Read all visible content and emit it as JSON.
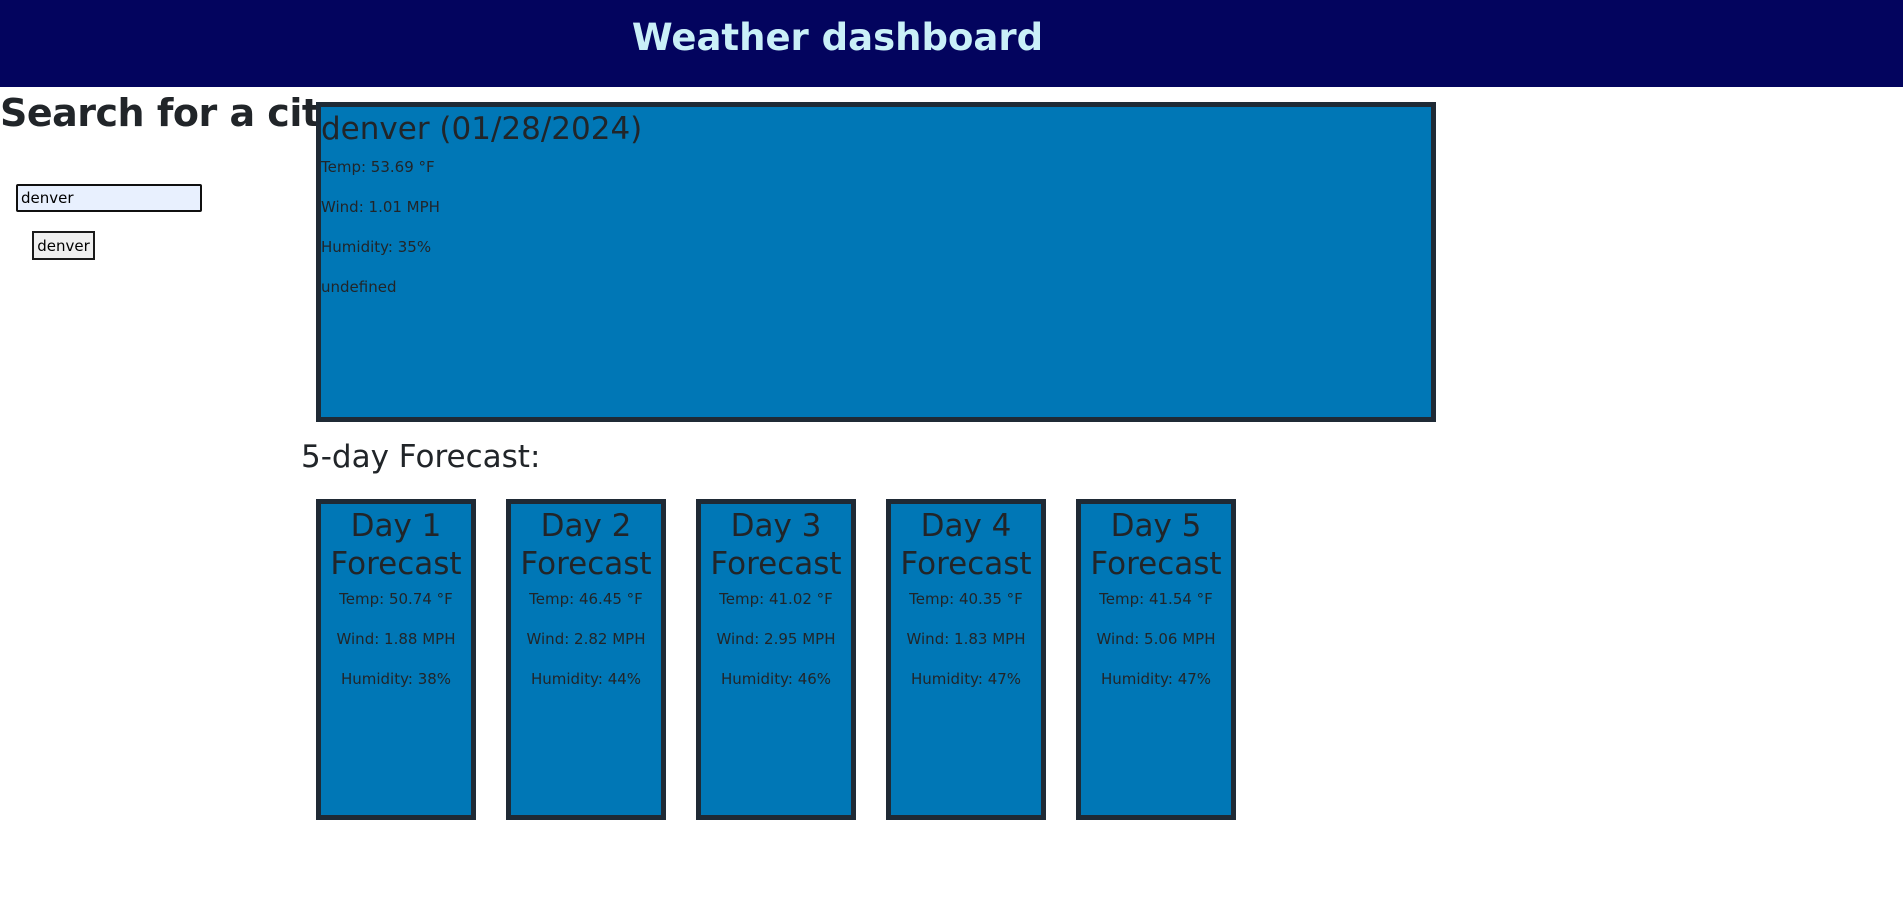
{
  "header": {
    "title": "Weather dashboard"
  },
  "search": {
    "heading": "Search for a city:",
    "value": "denver",
    "history": [
      "denver"
    ]
  },
  "current": {
    "title": "denver (01/28/2024)",
    "temp": "Temp: 53.69 °F",
    "wind": "Wind: 1.01 MPH",
    "humidity": "Humidity: 35%",
    "extra": "undefined"
  },
  "forecast": {
    "heading": "5-day Forecast:",
    "days": [
      {
        "line1": "Day 1",
        "line2": "Forecast",
        "temp": "Temp: 50.74 °F",
        "wind": "Wind: 1.88 MPH",
        "humidity": "Humidity: 38%"
      },
      {
        "line1": "Day 2",
        "line2": "Forecast",
        "temp": "Temp: 46.45 °F",
        "wind": "Wind: 2.82 MPH",
        "humidity": "Humidity: 44%"
      },
      {
        "line1": "Day 3",
        "line2": "Forecast",
        "temp": "Temp: 41.02 °F",
        "wind": "Wind: 2.95 MPH",
        "humidity": "Humidity: 46%"
      },
      {
        "line1": "Day 4",
        "line2": "Forecast",
        "temp": "Temp: 40.35 °F",
        "wind": "Wind: 1.83 MPH",
        "humidity": "Humidity: 47%"
      },
      {
        "line1": "Day 5",
        "line2": "Forecast",
        "temp": "Temp: 41.54 °F",
        "wind": "Wind: 5.06 MPH",
        "humidity": "Humidity: 47%"
      }
    ]
  },
  "colors": {
    "header_bg": "#03045e",
    "header_text": "#caf0f8",
    "card_bg": "#0077b6",
    "card_border": "#1f2a35"
  }
}
